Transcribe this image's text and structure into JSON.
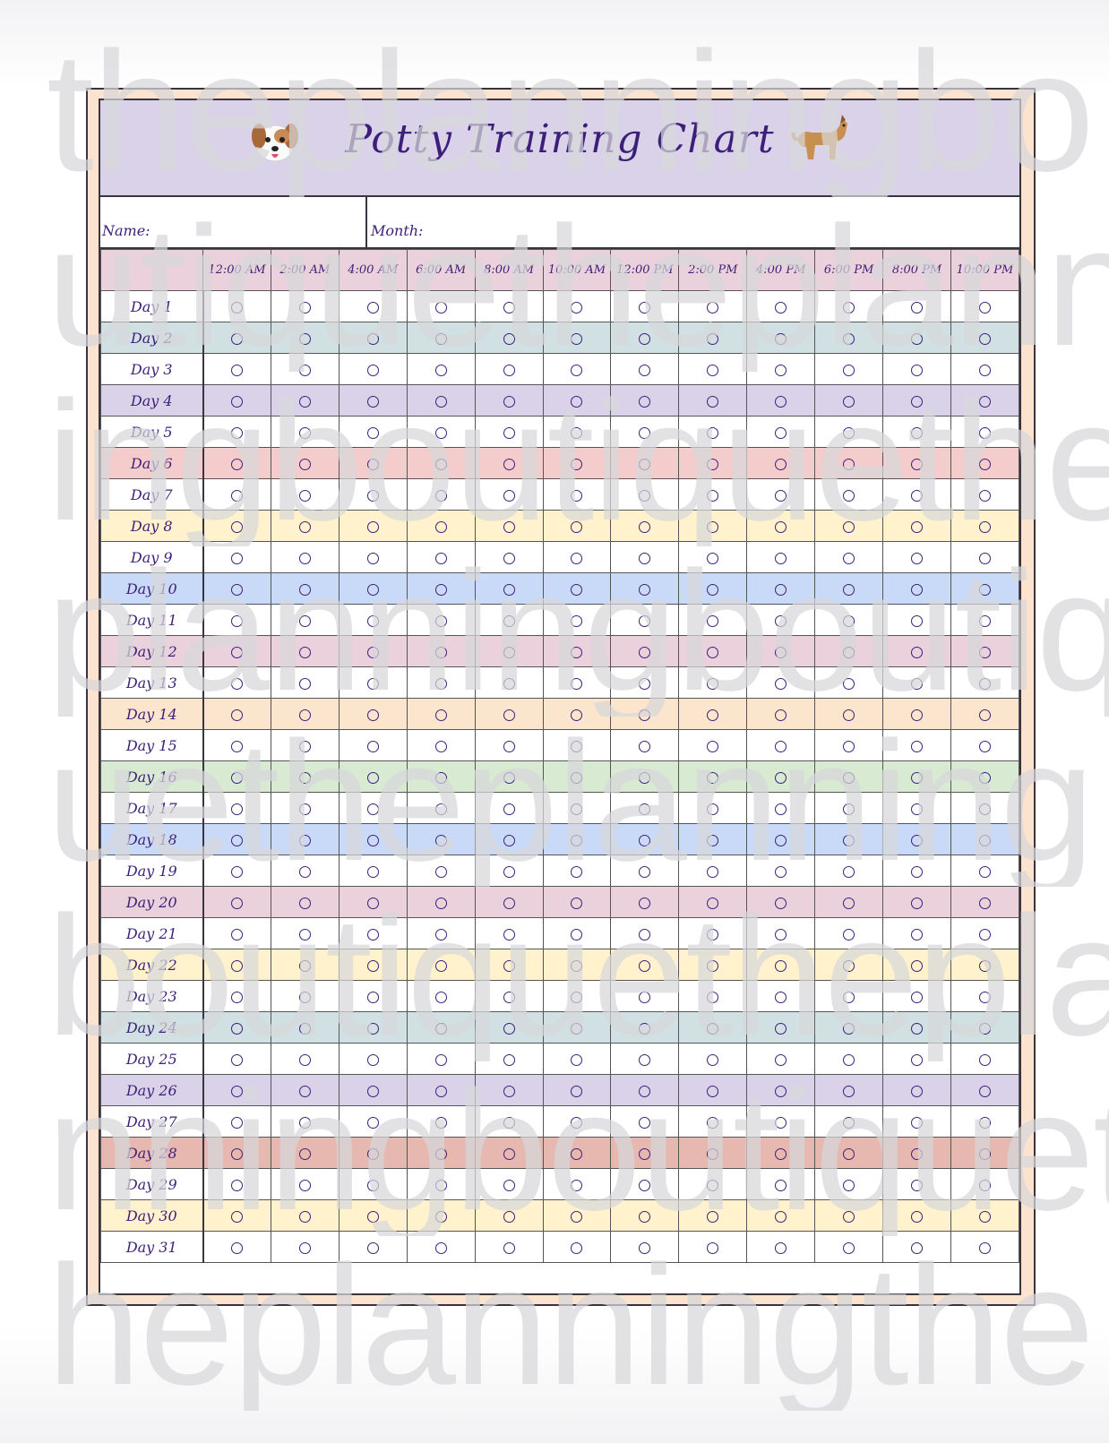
{
  "chart": {
    "title": "Potty Training Chart",
    "name_label": "Name:",
    "month_label": "Month:",
    "time_slots": [
      "12:00 AM",
      "2:00 AM",
      "4:00 AM",
      "6:00 AM",
      "8:00 AM",
      "10:00 AM",
      "12:00 PM",
      "2:00 PM",
      "4:00 PM",
      "6:00 PM",
      "8:00 PM",
      "10:00 PM"
    ],
    "days": [
      {
        "label": "Day 1",
        "color": "#ffffff"
      },
      {
        "label": "Day 2",
        "color": "#d0e0e3"
      },
      {
        "label": "Day 3",
        "color": "#ffffff"
      },
      {
        "label": "Day 4",
        "color": "#d9d2e9"
      },
      {
        "label": "Day 5",
        "color": "#ffffff"
      },
      {
        "label": "Day 6",
        "color": "#f4cccc"
      },
      {
        "label": "Day 7",
        "color": "#ffffff"
      },
      {
        "label": "Day 8",
        "color": "#fff2cc"
      },
      {
        "label": "Day 9",
        "color": "#ffffff"
      },
      {
        "label": "Day 10",
        "color": "#c9daf8"
      },
      {
        "label": "Day 11",
        "color": "#ffffff"
      },
      {
        "label": "Day 12",
        "color": "#ead1dc"
      },
      {
        "label": "Day 13",
        "color": "#ffffff"
      },
      {
        "label": "Day 14",
        "color": "#fce5cd"
      },
      {
        "label": "Day 15",
        "color": "#ffffff"
      },
      {
        "label": "Day 16",
        "color": "#d9ead3"
      },
      {
        "label": "Day 17",
        "color": "#ffffff"
      },
      {
        "label": "Day 18",
        "color": "#c9daf8"
      },
      {
        "label": "Day 19",
        "color": "#ffffff"
      },
      {
        "label": "Day 20",
        "color": "#ead1dc"
      },
      {
        "label": "Day 21",
        "color": "#ffffff"
      },
      {
        "label": "Day 22",
        "color": "#fff2cc"
      },
      {
        "label": "Day 23",
        "color": "#ffffff"
      },
      {
        "label": "Day 24",
        "color": "#d0e0e3"
      },
      {
        "label": "Day 25",
        "color": "#ffffff"
      },
      {
        "label": "Day 26",
        "color": "#d9d2e9"
      },
      {
        "label": "Day 27",
        "color": "#ffffff"
      },
      {
        "label": "Day 28",
        "color": "#e6b8af"
      },
      {
        "label": "Day 29",
        "color": "#ffffff"
      },
      {
        "label": "Day 30",
        "color": "#fff2cc"
      },
      {
        "label": "Day 31",
        "color": "#ffffff"
      }
    ]
  },
  "icons": {
    "left": "puppy-face-icon",
    "right": "walking-dog-icon"
  },
  "watermark": {
    "lines": [
      "theplanningbo",
      "utiquetheplann",
      "ingboutiquethe",
      "planningboutiq",
      "uetheplanning",
      "boutiquethepla",
      "nningboutiquet",
      "heplanningthe"
    ]
  },
  "colors": {
    "frame": "#fbe3cf",
    "title_bar": "#d9d2e9",
    "header_row": "#ead1dc",
    "ink": "#3d1f7a"
  }
}
